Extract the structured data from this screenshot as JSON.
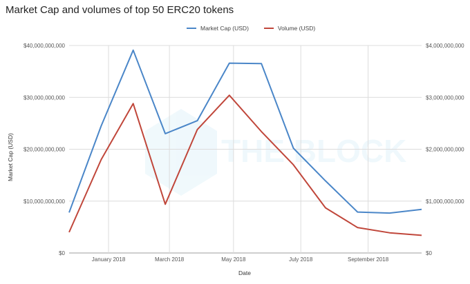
{
  "chart_data": {
    "type": "line",
    "title": "Market Cap and volumes of top 50 ERC20 tokens",
    "xlabel": "Date",
    "ylabel": "Market Cap (USD)",
    "x_tick_labels": [
      "January 2018",
      "March 2018",
      "May 2018",
      "July 2018",
      "September 2018"
    ],
    "x_tick_index": [
      1.23,
      3.13,
      5.13,
      7.23,
      9.33
    ],
    "x_range": [
      0,
      11
    ],
    "left_axis": {
      "ylim": [
        0,
        40000000000
      ],
      "tick_labels": [
        "$0",
        "$10,000,000,000",
        "$20,000,000,000",
        "$30,000,000,000",
        "$40,000,000,000"
      ]
    },
    "right_axis": {
      "ylim": [
        0,
        4000000000
      ],
      "tick_labels": [
        "$0",
        "$1,000,000,000",
        "$2,000,000,000",
        "$3,000,000,000",
        "$4,000,000,000"
      ]
    },
    "series": [
      {
        "name": "Market Cap (USD)",
        "axis": "left",
        "color": "#4a86c8",
        "values": [
          7800000000,
          24500000000,
          39100000000,
          23000000000,
          25500000000,
          36600000000,
          36500000000,
          20200000000,
          13900000000,
          7900000000,
          7700000000,
          8400000000
        ]
      },
      {
        "name": "Volume (USD)",
        "axis": "right",
        "color": "#c0463a",
        "values": [
          400000000,
          1800000000,
          2880000000,
          940000000,
          2380000000,
          3040000000,
          2340000000,
          1700000000,
          870000000,
          490000000,
          390000000,
          340000000
        ]
      }
    ],
    "watermark": "THE BLOCK"
  }
}
